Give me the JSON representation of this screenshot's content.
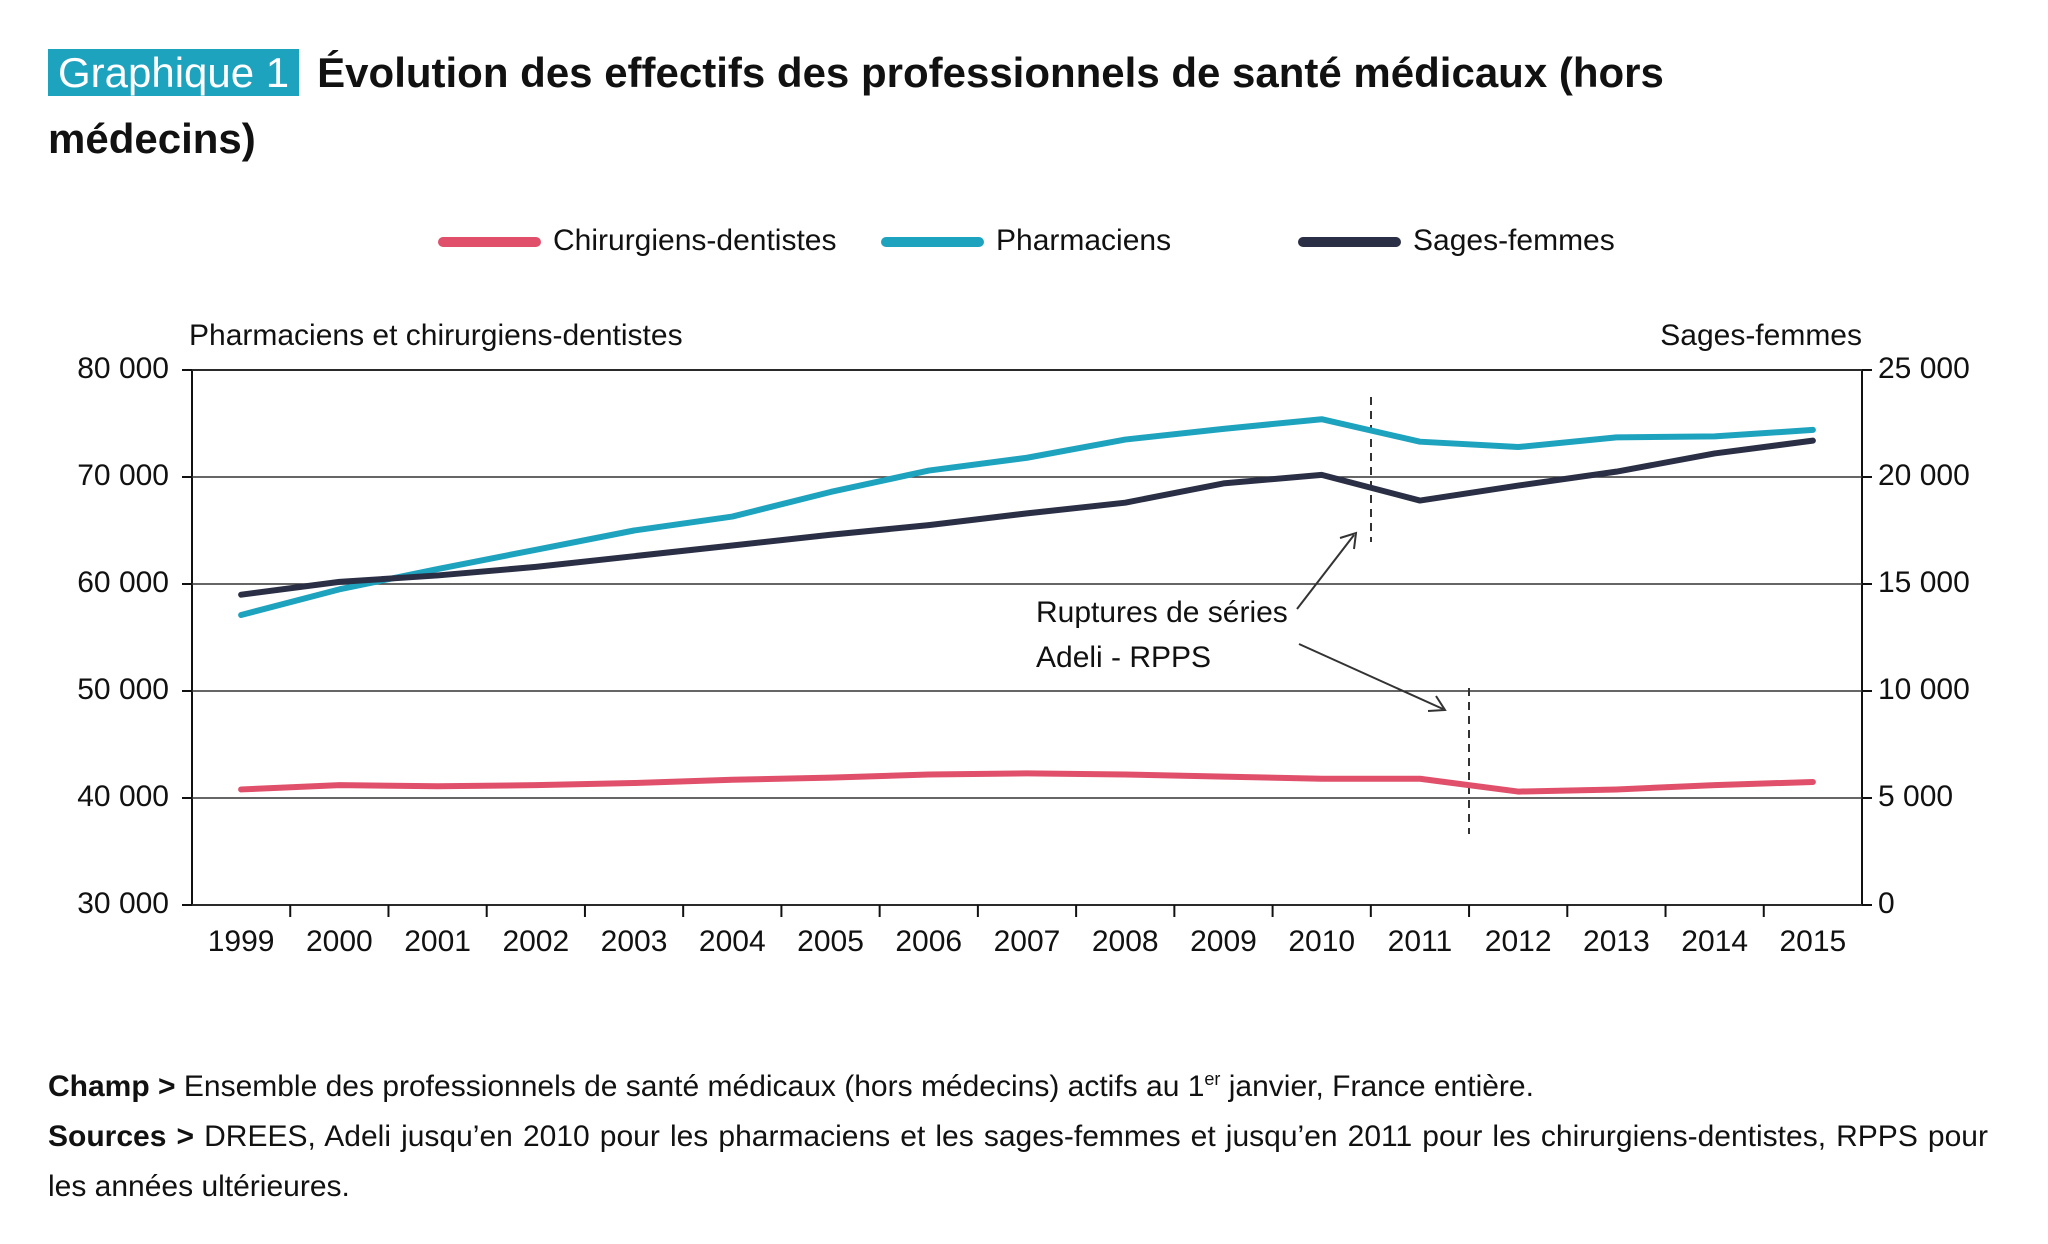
{
  "header": {
    "label": "Graphique 1",
    "title": "Évolution des effectifs des professionnels de santé médicaux (hors médecins)"
  },
  "chart_data": {
    "type": "line",
    "y_axis_title": "Pharmaciens et chirurgiens-dentistes",
    "y2_axis_title": "Sages-femmes",
    "x": [
      1999,
      2000,
      2001,
      2002,
      2003,
      2004,
      2005,
      2006,
      2007,
      2008,
      2009,
      2010,
      2011,
      2012,
      2013,
      2014,
      2015
    ],
    "xlim": [
      1998.5,
      2015.5
    ],
    "series": [
      {
        "name": "Chirurgiens-dentistes",
        "color": "#e0506a",
        "values": [
          40800,
          41200,
          41100,
          41200,
          41400,
          41700,
          41900,
          42200,
          42300,
          42200,
          42000,
          41800,
          41800,
          40600,
          40800,
          41200,
          41500
        ]
      },
      {
        "name": "Pharmaciens",
        "color": "#1ea3bf",
        "values": [
          57100,
          59500,
          61400,
          63200,
          65000,
          66300,
          68600,
          70600,
          71800,
          73500,
          74500,
          75400,
          73300,
          72800,
          73700,
          73800,
          74400
        ]
      },
      {
        "name": "Sages-femmes",
        "color": "#2b2f45",
        "axis": "y2",
        "values": [
          14500,
          15100,
          15400,
          15800,
          16300,
          16800,
          17300,
          17750,
          18300,
          18800,
          19700,
          20100,
          18900,
          19600,
          20250,
          21100,
          21700
        ]
      }
    ],
    "ylim": [
      30000,
      80000
    ],
    "yticks": [
      {
        "value": 30000,
        "label": "30 000"
      },
      {
        "value": 40000,
        "label": "40 000"
      },
      {
        "value": 50000,
        "label": "50 000"
      },
      {
        "value": 60000,
        "label": "60 000"
      },
      {
        "value": 70000,
        "label": "70 000"
      },
      {
        "value": 80000,
        "label": "80 000"
      }
    ],
    "y2lim": [
      0,
      25000
    ],
    "y2ticks": [
      0,
      {
        "value": 5000,
        "label": "5 000"
      },
      {
        "value": 10000,
        "label": "10 000"
      },
      {
        "value": 15000,
        "label": "15 000"
      },
      {
        "value": 20000,
        "label": "20 000"
      },
      {
        "value": 25000,
        "label": "25 000"
      }
    ],
    "grid": true,
    "legend": "top",
    "annotation": [
      "Ruptures de séries",
      "Adeli - RPPS"
    ]
  },
  "notes": {
    "champ_label": "Champ >",
    "champ_before": "Ensemble des professionnels de santé médicaux (hors médecins) actifs au 1",
    "champ_sup": "er",
    "champ_after": "janvier, France entière.",
    "sources_label": "Sources >",
    "sources_text": "DREES, Adeli jusqu’en 2010 pour les pharmaciens et les sages-femmes et jusqu’en 2011 pour les chirurgiens-dentistes, RPPS pour les années ultérieures."
  }
}
